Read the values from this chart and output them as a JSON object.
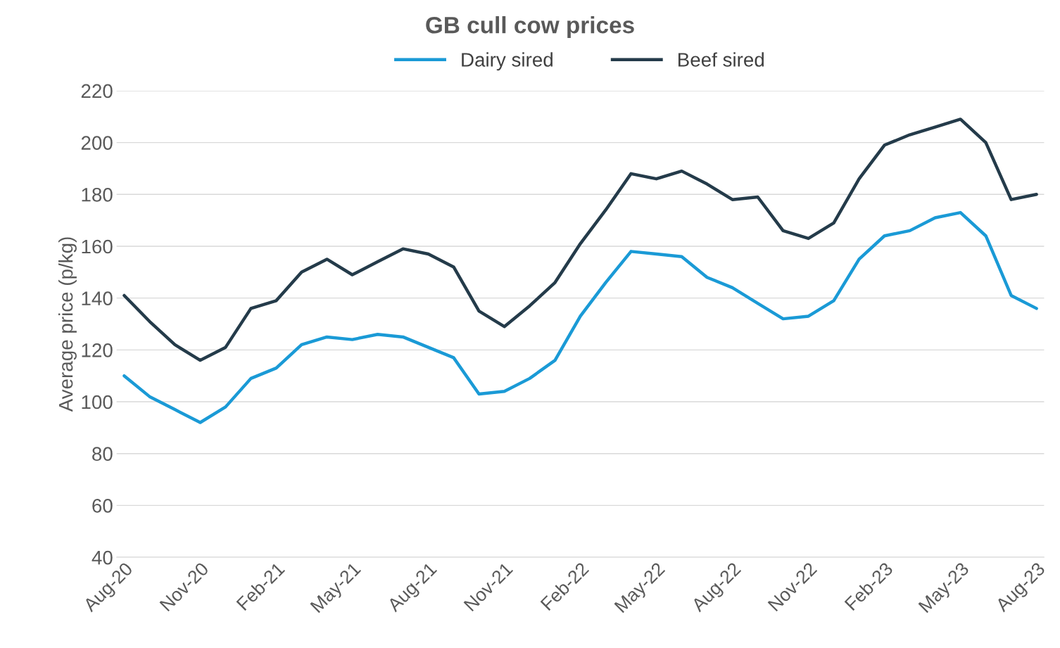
{
  "chart_data": {
    "type": "line",
    "title": "GB cull cow prices",
    "ylabel": "Average price (p/kg)",
    "categories": [
      "Aug-20",
      null,
      null,
      "Nov-20",
      null,
      null,
      "Feb-21",
      null,
      null,
      "May-21",
      null,
      null,
      "Aug-21",
      null,
      null,
      "Nov-21",
      null,
      null,
      "Feb-22",
      null,
      null,
      "May-22",
      null,
      null,
      "Aug-22",
      null,
      null,
      "Nov-22",
      null,
      null,
      "Feb-23",
      null,
      null,
      "May-23",
      null,
      null,
      "Aug-23"
    ],
    "series": [
      {
        "name": "Dairy sired",
        "color": "#1a9ad6",
        "values": [
          110,
          102,
          97,
          92,
          98,
          109,
          113,
          122,
          125,
          124,
          126,
          125,
          121,
          117,
          103,
          104,
          109,
          116,
          133,
          146,
          158,
          157,
          156,
          148,
          144,
          138,
          132,
          133,
          139,
          155,
          164,
          166,
          171,
          173,
          164,
          141,
          136
        ]
      },
      {
        "name": "Beef sired",
        "color": "#243b4a",
        "values": [
          141,
          131,
          122,
          116,
          121,
          136,
          139,
          150,
          155,
          149,
          154,
          159,
          157,
          152,
          135,
          129,
          137,
          146,
          161,
          174,
          188,
          186,
          189,
          184,
          178,
          179,
          166,
          163,
          169,
          186,
          199,
          203,
          206,
          209,
          200,
          178,
          180
        ]
      }
    ],
    "ylim": [
      40,
      220
    ],
    "yticks": [
      40,
      60,
      80,
      100,
      120,
      140,
      160,
      180,
      200,
      220
    ],
    "grid": "y",
    "legend": "top",
    "marker": "none",
    "line_style": "solid"
  }
}
